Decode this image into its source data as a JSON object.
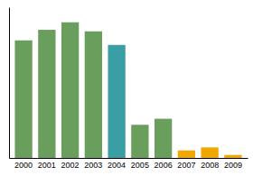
{
  "chart_data": {
    "type": "bar",
    "categories": [
      "2000",
      "2001",
      "2002",
      "2003",
      "2004",
      "2005",
      "2006",
      "2007",
      "2008",
      "2009"
    ],
    "values": [
      78,
      85,
      90,
      84,
      75,
      22,
      26,
      5,
      7,
      2
    ],
    "colors": [
      "#6a9e5c",
      "#6a9e5c",
      "#6a9e5c",
      "#6a9e5c",
      "#3a9ea5",
      "#6a9e5c",
      "#6a9e5c",
      "#f0a800",
      "#f0a800",
      "#f0a800"
    ],
    "ylim": [
      0,
      100
    ],
    "yticks": [],
    "grid": false,
    "tick_labels": "x"
  }
}
